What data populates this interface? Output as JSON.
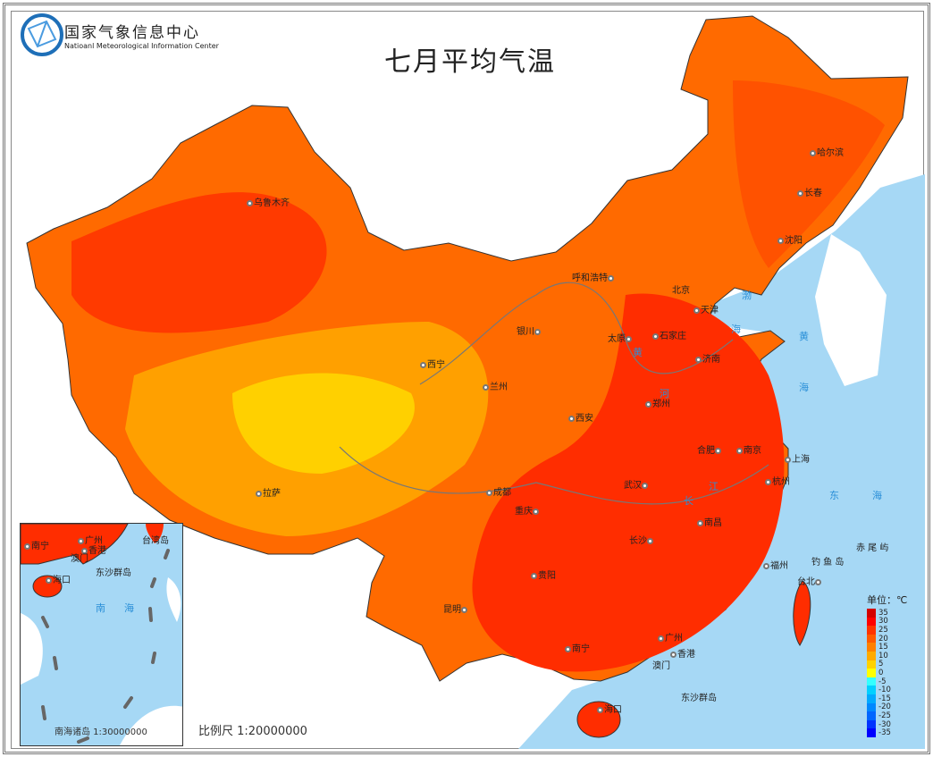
{
  "header": {
    "logo_cn": "国家气象信息中心",
    "logo_en": "Natioanl Meteorological Information Center",
    "title": "七月平均气温"
  },
  "cities": [
    "乌鲁木齐",
    "拉萨",
    "西宁",
    "兰州",
    "银川",
    "呼和浩特",
    "北京",
    "天津",
    "石家庄",
    "太原",
    "济南",
    "郑州",
    "西安",
    "成都",
    "重庆",
    "贵阳",
    "昆明",
    "南宁",
    "广州",
    "香港",
    "澳门",
    "海口",
    "长沙",
    "武汉",
    "南昌",
    "福州",
    "台北",
    "杭州",
    "上海",
    "南京",
    "合肥",
    "沈阳",
    "长春",
    "哈尔滨"
  ],
  "seas": [
    "渤",
    "海",
    "黄",
    "海",
    "东",
    "海",
    "钓 鱼 岛",
    "赤 尾 屿",
    "东沙群岛"
  ],
  "rivers": [
    "黄",
    "河",
    "长",
    "江"
  ],
  "legend": {
    "unit": "单位：℃",
    "items": [
      {
        "label": "35",
        "color": "#d40000"
      },
      {
        "label": "30",
        "color": "#ff0000"
      },
      {
        "label": "25",
        "color": "#ff3300"
      },
      {
        "label": "20",
        "color": "#ff5a00"
      },
      {
        "label": "15",
        "color": "#ff8000"
      },
      {
        "label": "10",
        "color": "#ffaa00"
      },
      {
        "label": "5",
        "color": "#ffd200"
      },
      {
        "label": "0",
        "color": "#ffff00"
      },
      {
        "label": "-5",
        "color": "#33ffff"
      },
      {
        "label": "-10",
        "color": "#00d0ff"
      },
      {
        "label": "-15",
        "color": "#00aaff"
      },
      {
        "label": "-20",
        "color": "#0088ff"
      },
      {
        "label": "-25",
        "color": "#0066ff"
      },
      {
        "label": "-30",
        "color": "#0033ff"
      },
      {
        "label": "-35",
        "color": "#0000ff"
      }
    ]
  },
  "inset": {
    "cities": [
      "南宁",
      "广州",
      "香港",
      "澳门",
      "海口"
    ],
    "labels": [
      "台湾岛",
      "东沙群岛",
      "南",
      "海"
    ],
    "caption": "南海诸岛 1:30000000"
  },
  "scale": "比例尺 1:20000000",
  "colors": {
    "sea": "#a6d8f5",
    "base_land": "#ff6a00",
    "hot": "#ff2d00",
    "cool": "#ffb000",
    "coolest": "#ffd800"
  }
}
